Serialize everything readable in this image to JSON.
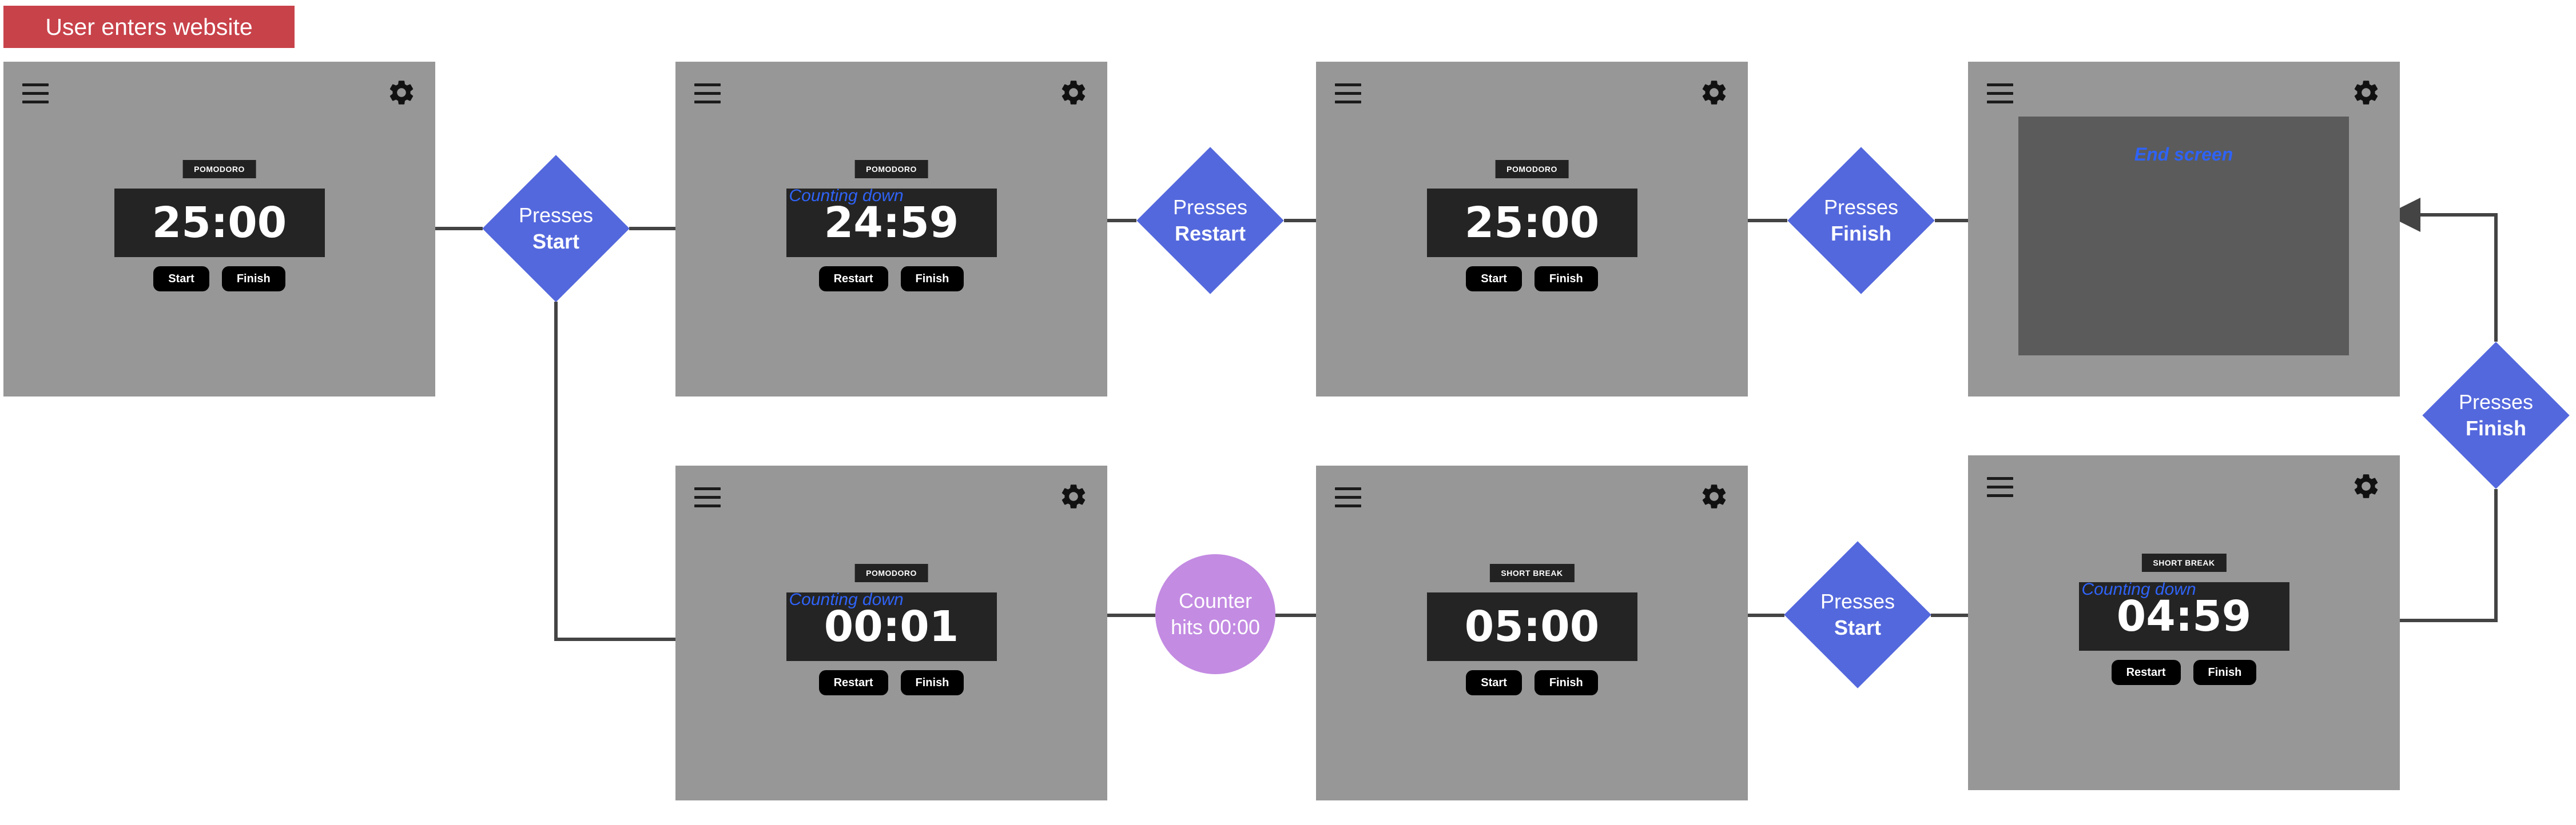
{
  "start_label": "User enters website",
  "screens": {
    "s1": {
      "tag": "POMODORO",
      "time": "25:00",
      "hint": "",
      "buttons": [
        "Start",
        "Finish"
      ]
    },
    "s2": {
      "tag": "POMODORO",
      "time": "24:59",
      "hint": "Counting down",
      "buttons": [
        "Restart",
        "Finish"
      ]
    },
    "s3": {
      "tag": "POMODORO",
      "time": "25:00",
      "hint": "",
      "buttons": [
        "Start",
        "Finish"
      ]
    },
    "s4": {
      "end_label": "End screen"
    },
    "s5": {
      "tag": "POMODORO",
      "time": "00:01",
      "hint": "Counting down",
      "buttons": [
        "Restart",
        "Finish"
      ]
    },
    "s6": {
      "tag": "SHORT BREAK",
      "time": "05:00",
      "hint": "",
      "buttons": [
        "Start",
        "Finish"
      ]
    },
    "s7": {
      "tag": "SHORT BREAK",
      "time": "04:59",
      "hint": "Counting down",
      "buttons": [
        "Restart",
        "Finish"
      ]
    }
  },
  "decisions": {
    "d1": {
      "line1": "Presses",
      "line2": "Start"
    },
    "d2": {
      "line1": "Presses",
      "line2": "Restart"
    },
    "d3": {
      "line1": "Presses",
      "line2": "Finish"
    },
    "d4": {
      "line1": "Presses",
      "line2": "Start"
    },
    "d5": {
      "line1": "Presses",
      "line2": "Finish"
    }
  },
  "event": {
    "line1": "Counter",
    "line2": "hits 00:00"
  },
  "icons": {
    "menu": "hamburger-menu-icon",
    "settings": "gear-icon"
  },
  "colors": {
    "screen_bg": "#979797",
    "timer_bg": "#242424",
    "decision": "#5468dd",
    "event": "#c38be2",
    "start_banner": "#c8424a",
    "hint_text": "#2f63f6",
    "end_panel": "#5b5b5b",
    "connector": "#444444"
  }
}
